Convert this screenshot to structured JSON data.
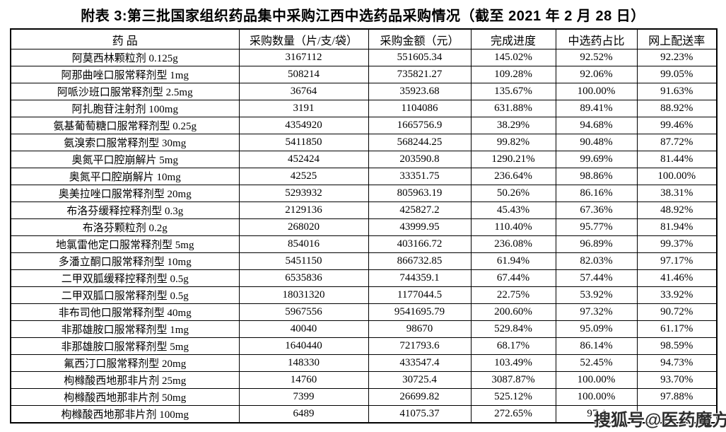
{
  "title": "附表 3:第三批国家组织药品集中采购江西中选药品采购情况（截至 2021 年 2 月 28 日）",
  "watermark": "搜狐号@医药魔方",
  "table": {
    "columns": [
      "药  品",
      "采购数量（片/支/袋）",
      "采购金额（元）",
      "完成进度",
      "中选药占比",
      "网上配送率"
    ],
    "column_keys": [
      "drug",
      "quantity",
      "amount",
      "progress",
      "selected-share",
      "online-delivery-rate"
    ],
    "rows": [
      [
        "阿莫西林颗粒剂 0.125g",
        "3167112",
        "551605.34",
        "145.02%",
        "92.52%",
        "92.23%"
      ],
      [
        "阿那曲唑口服常释剂型 1mg",
        "508214",
        "735821.27",
        "109.28%",
        "92.06%",
        "99.05%"
      ],
      [
        "阿哌沙班口服常释剂型 2.5mg",
        "36764",
        "35923.68",
        "135.67%",
        "100.00%",
        "91.63%"
      ],
      [
        "阿扎胞苷注射剂 100mg",
        "3191",
        "1104086",
        "631.88%",
        "89.41%",
        "88.92%"
      ],
      [
        "氨基葡萄糖口服常释剂型 0.25g",
        "4354920",
        "1665756.9",
        "38.29%",
        "94.68%",
        "99.46%"
      ],
      [
        "氨溴索口服常释剂型 30mg",
        "5411850",
        "568244.25",
        "99.82%",
        "90.48%",
        "87.72%"
      ],
      [
        "奥氮平口腔崩解片 5mg",
        "452424",
        "203590.8",
        "1290.21%",
        "99.69%",
        "81.44%"
      ],
      [
        "奥氮平口腔崩解片 10mg",
        "42525",
        "33351.75",
        "236.64%",
        "98.86%",
        "100.00%"
      ],
      [
        "奥美拉唑口服常释剂型 20mg",
        "5293932",
        "805963.19",
        "50.26%",
        "86.16%",
        "38.31%"
      ],
      [
        "布洛芬缓释控释剂型 0.3g",
        "2129136",
        "425827.2",
        "45.43%",
        "67.36%",
        "48.92%"
      ],
      [
        "布洛芬颗粒剂 0.2g",
        "268020",
        "43999.95",
        "110.40%",
        "95.77%",
        "81.94%"
      ],
      [
        "地氯雷他定口服常释剂型 5mg",
        "854016",
        "403166.72",
        "236.08%",
        "96.89%",
        "99.37%"
      ],
      [
        "多潘立酮口服常释剂型 10mg",
        "5451150",
        "866732.85",
        "61.94%",
        "82.03%",
        "97.17%"
      ],
      [
        "二甲双胍缓释控释剂型 0.5g",
        "6535836",
        "744359.1",
        "67.44%",
        "57.44%",
        "41.46%"
      ],
      [
        "二甲双胍口服常释剂型 0.5g",
        "18031320",
        "1177044.5",
        "22.75%",
        "53.92%",
        "33.92%"
      ],
      [
        "非布司他口服常释剂型 40mg",
        "5967556",
        "9541695.79",
        "200.60%",
        "97.32%",
        "90.72%"
      ],
      [
        "非那雄胺口服常释剂型 1mg",
        "40040",
        "98670",
        "529.84%",
        "95.09%",
        "61.17%"
      ],
      [
        "非那雄胺口服常释剂型 5mg",
        "1640440",
        "721793.6",
        "68.17%",
        "86.14%",
        "98.59%"
      ],
      [
        "氟西汀口服常释剂型 20mg",
        "148330",
        "433547.4",
        "103.49%",
        "52.45%",
        "94.73%"
      ],
      [
        "枸橼酸西地那非片剂 25mg",
        "14760",
        "30725.4",
        "3087.87%",
        "100.00%",
        "93.70%"
      ],
      [
        "枸橼酸西地那非片剂 50mg",
        "7399",
        "26699.82",
        "525.12%",
        "100.00%",
        "97.88%"
      ],
      [
        "枸橼酸西地那非片剂 100mg",
        "6489",
        "41075.37",
        "272.65%",
        "97.4",
        ""
      ]
    ]
  }
}
